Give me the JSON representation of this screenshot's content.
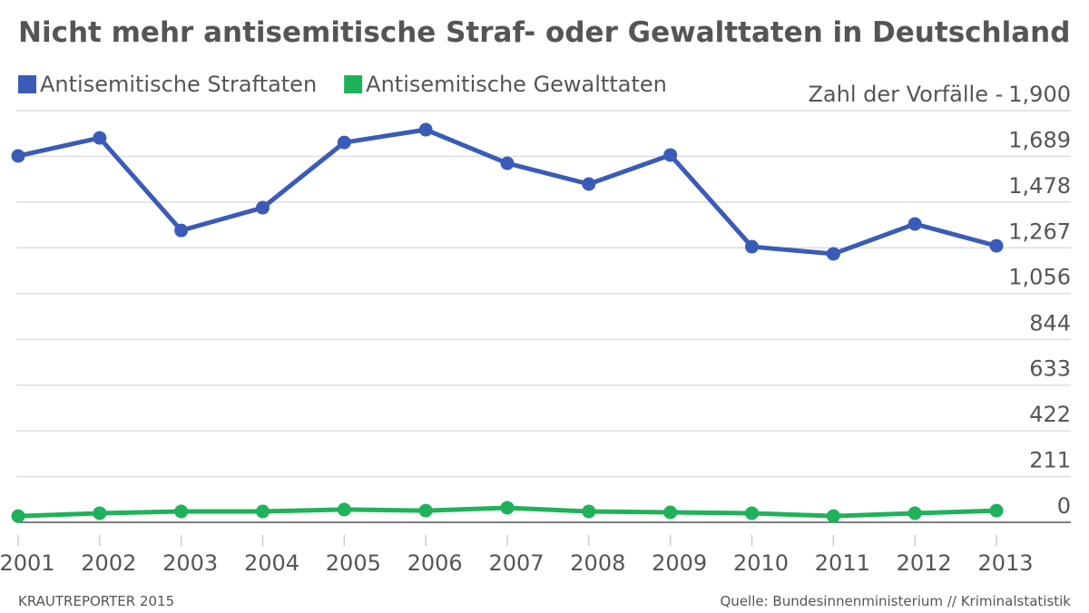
{
  "chart_data": {
    "type": "line",
    "title": "Nicht mehr antisemitische Straf- oder Gewalttaten in Deutschland",
    "y_label": "Zahl der Vorfälle -",
    "categories": [
      "2001",
      "2002",
      "2003",
      "2004",
      "2005",
      "2006",
      "2007",
      "2008",
      "2009",
      "2010",
      "2011",
      "2012",
      "2013"
    ],
    "series": [
      {
        "name": "Antisemitische Straftaten",
        "color": "#3a5bb8",
        "values": [
          1691,
          1774,
          1347,
          1452,
          1753,
          1812,
          1657,
          1561,
          1695,
          1272,
          1239,
          1377,
          1276
        ]
      },
      {
        "name": "Antisemitische Gewalttaten",
        "color": "#1fb25a",
        "values": [
          29,
          42,
          50,
          50,
          59,
          54,
          67,
          50,
          46,
          42,
          29,
          42,
          54
        ]
      }
    ],
    "ylim": [
      0,
      1900
    ],
    "yticks": [
      0,
      211,
      422,
      633,
      844,
      {
        "value": 1056,
        "label": "1,056"
      },
      {
        "value": 1267,
        "label": "1,267"
      },
      {
        "value": 1478,
        "label": "1,478"
      },
      {
        "value": 1689,
        "label": "1,689"
      },
      {
        "value": 1900,
        "label": "1,900"
      }
    ],
    "grid": true,
    "legend": "top-left",
    "credit": "KRAUTREPORTER 2015",
    "source": "Quelle: Bundesinnenministerium // Kriminalstatistik"
  }
}
